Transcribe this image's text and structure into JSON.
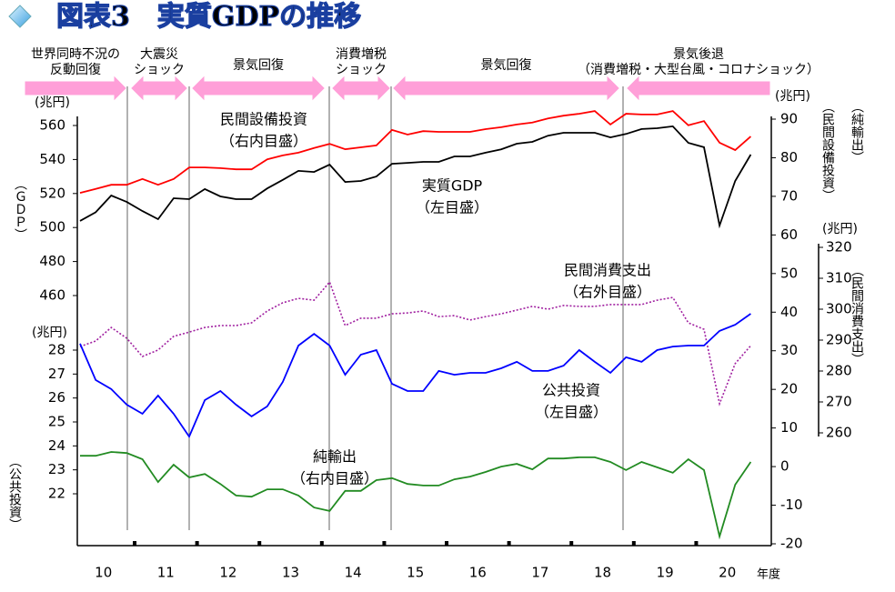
{
  "chart_data": {
    "type": "line",
    "title": "図表3　実質GDPの推移",
    "phases": [
      {
        "label": [
          "世界同時不況の",
          "反動回復"
        ]
      },
      {
        "label": [
          "大震災",
          "ショック"
        ]
      },
      {
        "label": [
          "景気回復"
        ]
      },
      {
        "label": [
          "消費増税",
          "ショック"
        ]
      },
      {
        "label": [
          "景気回復"
        ]
      },
      {
        "label": [
          "景気後退",
          "（消費増税・大型台風・コロナショック）"
        ]
      }
    ],
    "x_labels": [
      "10",
      "11",
      "12",
      "13",
      "14",
      "15",
      "16",
      "17",
      "18",
      "19",
      "20"
    ],
    "x_unit": "年度",
    "ylabel": "（ＧＤＰ）",
    "yunit": "(兆円)",
    "ylim": [
      460,
      560
    ],
    "yticks": [
      460,
      480,
      500,
      520,
      540,
      560
    ],
    "y3label": "（公共投資）",
    "y3unit": "(兆円)",
    "y3lim": [
      22,
      28
    ],
    "y3ticks": [
      22,
      23,
      24,
      25,
      26,
      27,
      28
    ],
    "y2label": [
      "（民間設備投資）",
      "（純輸出）"
    ],
    "y2unit": "(兆円)",
    "y2lim": [
      -20,
      90
    ],
    "y2ticks": [
      -20,
      -10,
      0,
      10,
      20,
      30,
      40,
      50,
      60,
      70,
      80,
      90
    ],
    "y4label": "（民間消費支出）",
    "y4unit": "(兆円)",
    "y4lim": [
      260,
      320
    ],
    "y4ticks": [
      260,
      270,
      280,
      290,
      300,
      310,
      320
    ],
    "series": [
      {
        "name": "実質GDP",
        "note": "（左目盛）",
        "axis": "y",
        "color": "#000000",
        "dashed": false,
        "values": [
          503.9,
          509,
          518.8,
          515,
          509.7,
          504.9,
          517.2,
          516.7,
          522.6,
          518.3,
          516.7,
          516.7,
          523,
          528,
          533.3,
          532.7,
          537,
          526.8,
          527.4,
          530,
          537.5,
          538,
          538.6,
          538.6,
          541.8,
          541.8,
          544,
          546,
          549.3,
          550.4,
          554,
          555.7,
          555.7,
          555.7,
          553,
          555,
          557.9,
          558.4,
          559.5,
          549.8,
          547.2,
          501.2,
          527.4,
          542.9
        ]
      },
      {
        "name": "民間設備投資",
        "note": "（右内目盛）",
        "axis": "y2",
        "color": "#ff0000",
        "dashed": false,
        "values": [
          70.9,
          71.9,
          73,
          73,
          74.5,
          73,
          74.5,
          77.5,
          77.5,
          77.3,
          77,
          77,
          79.6,
          80.6,
          81.3,
          82.5,
          83.6,
          82.2,
          82.7,
          83.2,
          87.2,
          86,
          86.9,
          86.7,
          86.7,
          86.7,
          87.4,
          87.9,
          88.6,
          89.1,
          90.2,
          90.9,
          91.4,
          92.1,
          88.6,
          91.4,
          91.2,
          91.2,
          92.1,
          88.4,
          89.5,
          83.9,
          82,
          85.5
        ]
      },
      {
        "name": "民間消費支出",
        "note": "（右外目盛）",
        "axis": "y4",
        "color": "#a020a0",
        "dashed": true,
        "values": [
          287.9,
          289.7,
          294.1,
          290.6,
          284.7,
          286.8,
          291.2,
          292.6,
          294.1,
          294.7,
          294.7,
          295.6,
          299.4,
          302.1,
          303.5,
          302.9,
          308.8,
          294.7,
          297.1,
          297.1,
          298.5,
          298.8,
          299.4,
          297.6,
          297.9,
          296.5,
          297.6,
          298.5,
          299.7,
          300.9,
          300,
          301.2,
          300.9,
          300.9,
          301.5,
          301.5,
          301.5,
          302.9,
          303.8,
          295.6,
          293.5,
          269.4,
          282.4,
          288.2
        ]
      },
      {
        "name": "公共投資",
        "note": "（左目盛）",
        "axis": "y3",
        "color": "#0000ff",
        "dashed": false,
        "values": [
          28.27,
          26.75,
          26.37,
          25.72,
          25.34,
          26.1,
          25.34,
          24.39,
          25.91,
          26.29,
          25.72,
          25.23,
          25.65,
          26.67,
          28.19,
          28.68,
          28.19,
          26.97,
          27.81,
          28,
          26.59,
          26.29,
          26.29,
          27.13,
          26.97,
          27.05,
          27.05,
          27.24,
          27.51,
          27.13,
          27.13,
          27.35,
          28,
          27.51,
          27.05,
          27.7,
          27.51,
          28,
          28.15,
          28.19,
          28.19,
          28.8,
          29.06,
          29.52
        ]
      },
      {
        "name": "純輸出",
        "note": "（右内目盛）",
        "axis": "y2",
        "color": "#228b22",
        "dashed": false,
        "values": [
          2.8,
          2.8,
          3.8,
          3.5,
          1.9,
          -4,
          0.5,
          -2.8,
          -1.9,
          -4.5,
          -7.5,
          -7.8,
          -5.9,
          -5.9,
          -7.5,
          -10.6,
          -11.5,
          -6.3,
          -6.3,
          -3.5,
          -3,
          -4.5,
          -4.9,
          -4.9,
          -3.3,
          -2.6,
          -1.4,
          0,
          0.7,
          -0.7,
          2.1,
          2.1,
          2.4,
          2.4,
          1.2,
          -0.9,
          1.2,
          -0.2,
          -1.6,
          1.9,
          -0.9,
          -18.1,
          -4.7,
          1.2
        ]
      }
    ]
  }
}
